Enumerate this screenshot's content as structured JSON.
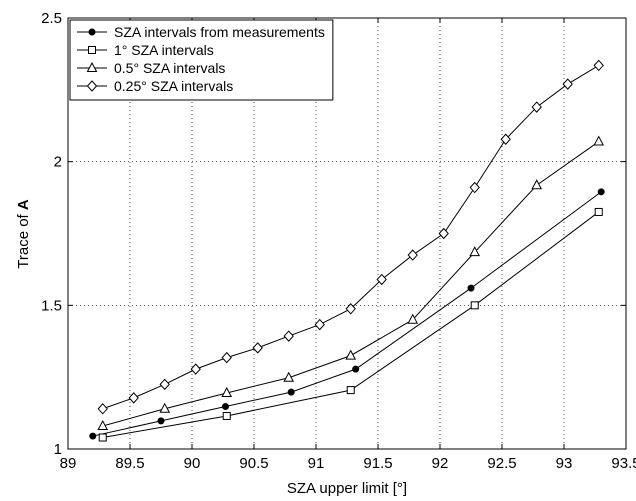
{
  "chart_data": {
    "type": "line",
    "title": "",
    "xlabel": "SZA upper limit [°]",
    "ylabel_prefix": "Trace of ",
    "ylabel_bold": "A",
    "xlim": [
      89,
      93.5
    ],
    "ylim": [
      1,
      2.5
    ],
    "xticks": [
      89,
      89.5,
      90,
      90.5,
      91,
      91.5,
      92,
      92.5,
      93,
      93.5
    ],
    "yticks": [
      1,
      1.5,
      2,
      2.5
    ],
    "xtick_labels": [
      "89",
      "89.5",
      "90",
      "90.5",
      "91",
      "91.5",
      "92",
      "92.5",
      "93",
      "93.5"
    ],
    "ytick_labels": [
      "1",
      "1.5",
      "2",
      "2.5"
    ],
    "grid": true,
    "legend_position": "top-left",
    "series": [
      {
        "name": "SZA intervals from measurements",
        "marker": "dot",
        "x": [
          89.2,
          89.75,
          90.27,
          90.8,
          91.32,
          92.25,
          93.3
        ],
        "y": [
          1.045,
          1.098,
          1.148,
          1.198,
          1.278,
          1.56,
          1.895
        ]
      },
      {
        "name": "1° SZA intervals",
        "marker": "square",
        "x": [
          89.28,
          90.28,
          91.28,
          92.28,
          93.28
        ],
        "y": [
          1.04,
          1.115,
          1.205,
          1.5,
          1.825
        ]
      },
      {
        "name": "0.5° SZA intervals",
        "marker": "triangle",
        "x": [
          89.28,
          89.78,
          90.28,
          90.78,
          91.28,
          91.78,
          92.28,
          92.78,
          93.28
        ],
        "y": [
          1.08,
          1.14,
          1.195,
          1.248,
          1.325,
          1.45,
          1.685,
          1.918,
          2.07
        ]
      },
      {
        "name": "0.25° SZA intervals",
        "marker": "diamond",
        "x": [
          89.28,
          89.53,
          89.78,
          90.03,
          90.28,
          90.53,
          90.78,
          91.03,
          91.28,
          91.53,
          91.78,
          92.03,
          92.28,
          92.53,
          92.78,
          93.03,
          93.28
        ],
        "y": [
          1.14,
          1.178,
          1.225,
          1.278,
          1.318,
          1.352,
          1.393,
          1.433,
          1.488,
          1.59,
          1.675,
          1.75,
          1.91,
          2.078,
          2.19,
          2.27,
          2.335
        ]
      }
    ]
  }
}
